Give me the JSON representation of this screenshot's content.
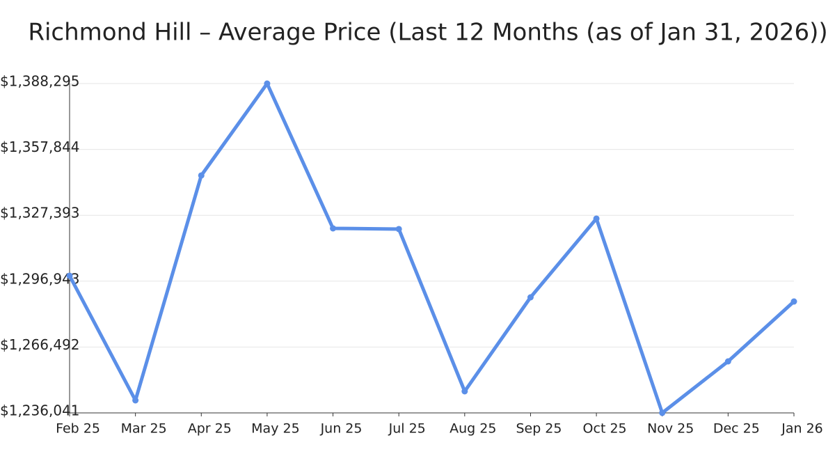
{
  "chart_data": {
    "type": "line",
    "title": "Richmond Hill – Average Price (Last 12 Months (as of Jan 31, 2026))",
    "categories": [
      "Feb 25",
      "Mar 25",
      "Apr 25",
      "May 25",
      "Jun 25",
      "Jul 25",
      "Aug 25",
      "Sep 25",
      "Oct 25",
      "Nov 25",
      "Dec 25",
      "Jan 26"
    ],
    "series": [
      {
        "name": "Average Price",
        "color": "#5b8fe8",
        "values": [
          1299455,
          1241835,
          1345809,
          1388295,
          1321345,
          1321023,
          1246020,
          1289476,
          1325851,
          1236041,
          1259862,
          1287545
        ]
      }
    ],
    "ylim": [
      1236041,
      1388295
    ],
    "yticks": [
      {
        "value": 1236041,
        "label": "$1,236,041"
      },
      {
        "value": 1266492,
        "label": "$1,266,492"
      },
      {
        "value": 1296943,
        "label": "$1,296,943"
      },
      {
        "value": 1327393,
        "label": "$1,327,393"
      },
      {
        "value": 1357844,
        "label": "$1,357,844"
      },
      {
        "value": 1388295,
        "label": "$1,388,295"
      }
    ],
    "grid": true
  }
}
